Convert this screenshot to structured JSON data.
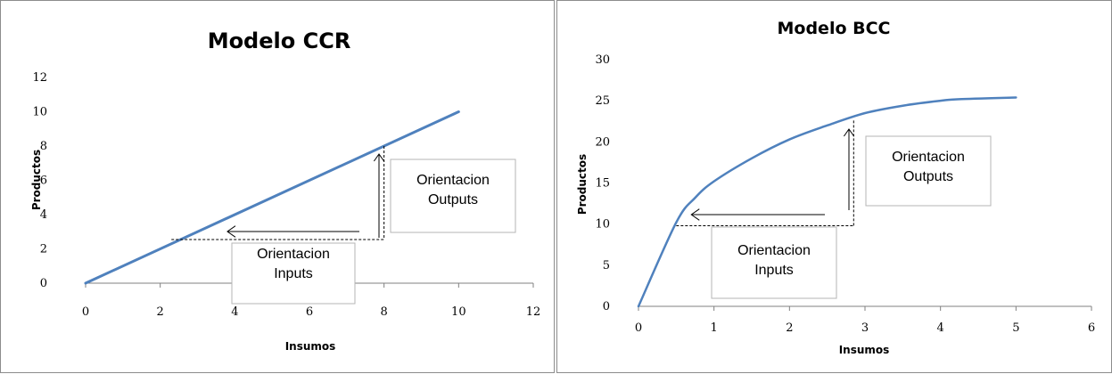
{
  "chart_data": [
    {
      "type": "line",
      "title": "Modelo CCR",
      "xlabel": "Insumos",
      "ylabel": "Productos",
      "xlim": [
        0,
        12
      ],
      "ylim": [
        0,
        12
      ],
      "xticks": [
        0,
        2,
        4,
        6,
        8,
        10,
        12
      ],
      "yticks": [
        0,
        2,
        4,
        6,
        8,
        10,
        12
      ],
      "grid": false,
      "series": [
        {
          "x": [
            0,
            10
          ],
          "y": [
            0,
            10
          ],
          "color": "#4f81bd"
        }
      ],
      "annotations": [
        {
          "label_lines": [
            "Orientacion",
            "Outputs"
          ],
          "type": "output-orientation"
        },
        {
          "label_lines": [
            "Orientacion",
            "Inputs"
          ],
          "type": "input-orientation"
        }
      ],
      "guide_point": {
        "x": 8,
        "y": 8,
        "horizontal_to_x": 2.3,
        "arrow_head_x": 3.8
      }
    },
    {
      "type": "line",
      "title": "Modelo BCC",
      "xlabel": "Insumos",
      "ylabel": "Productos",
      "xlim": [
        0,
        6
      ],
      "ylim": [
        0,
        30
      ],
      "xticks": [
        0,
        1,
        2,
        3,
        4,
        5,
        6
      ],
      "yticks": [
        0,
        5,
        10,
        15,
        20,
        25,
        30
      ],
      "grid": false,
      "series": [
        {
          "x": [
            0,
            0.5,
            0.75,
            1,
            1.5,
            2,
            2.5,
            3,
            3.5,
            4,
            4.25,
            5
          ],
          "y": [
            0,
            10.2,
            13.2,
            15.2,
            18.0,
            20.3,
            22.0,
            23.5,
            24.4,
            25.0,
            25.2,
            25.4
          ],
          "color": "#4f81bd"
        }
      ],
      "annotations": [
        {
          "label_lines": [
            "Orientacion",
            "Outputs"
          ],
          "type": "output-orientation"
        },
        {
          "label_lines": [
            "Orientacion",
            "Inputs"
          ],
          "type": "input-orientation"
        }
      ],
      "guide_point": {
        "x": 2.85,
        "y": 22.6,
        "horizontal_y": 9.8,
        "horizontal_to_x": 0.5,
        "arrow_head_x": 0.7
      }
    }
  ]
}
